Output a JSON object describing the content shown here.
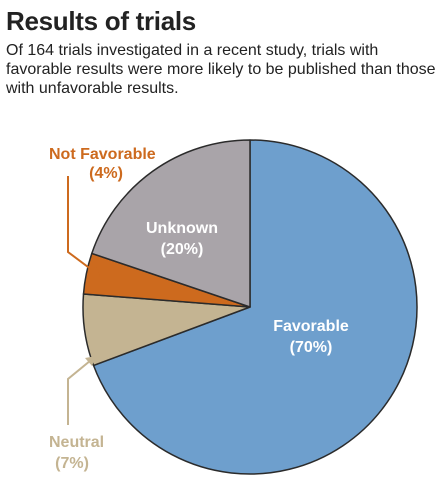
{
  "title": "Results of trials",
  "subtitle": "Of 164 trials investigated in a recent study, trials with favorable results were more likely to be published than those with unfavorable results.",
  "colors": {
    "favorable": "#6e9fcd",
    "unknown": "#a9a4a9",
    "not_favorable": "#cd6a1e",
    "neutral": "#c4b492",
    "outline": "#2b2b2b",
    "label_white": "#ffffff"
  },
  "chart_data": {
    "type": "pie",
    "start": "12 o'clock",
    "direction": "clockwise",
    "slices": [
      {
        "label": "Favorable",
        "value": 70,
        "value_label": "(70%)",
        "color": "#6e9fcd",
        "label_placement": "inside"
      },
      {
        "label": "Neutral",
        "value": 7,
        "value_label": "(7%)",
        "color": "#c4b492",
        "label_placement": "outside-bottom-left"
      },
      {
        "label": "Not Favorable",
        "value": 4,
        "value_label": "(4%)",
        "color": "#cd6a1e",
        "label_placement": "outside-top-left"
      },
      {
        "label": "Unknown",
        "value": 20,
        "value_label": "(20%)",
        "color": "#a9a4a9",
        "label_placement": "inside"
      }
    ]
  }
}
